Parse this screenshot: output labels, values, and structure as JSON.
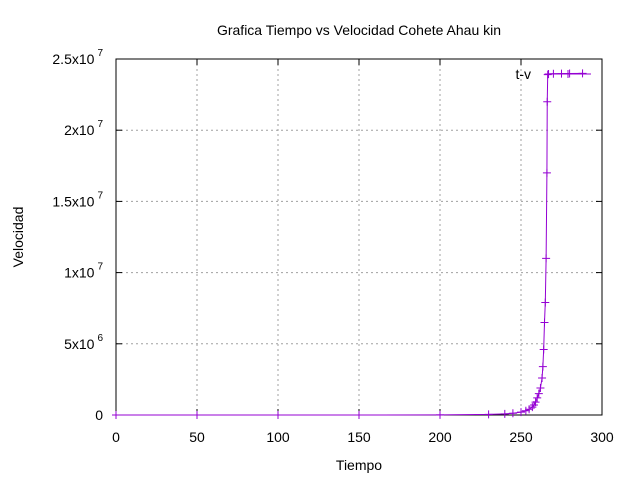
{
  "chart_data": {
    "type": "line",
    "title": "Grafica Tiempo vs Velocidad Cohete Ahau kin",
    "xlabel": "Tiempo",
    "ylabel": "Velocidad",
    "xlim": [
      0,
      300
    ],
    "ylim": [
      0,
      25000000
    ],
    "x_ticks": [
      0,
      50,
      100,
      150,
      200,
      250,
      300
    ],
    "x_tick_labels": [
      "0",
      "50",
      "100",
      "150",
      "200",
      "250",
      "300"
    ],
    "y_ticks": [
      0,
      5000000,
      10000000,
      15000000,
      20000000,
      25000000
    ],
    "y_tick_labels": [
      {
        "base": "0",
        "exp": ""
      },
      {
        "base": "5x10",
        "exp": "6"
      },
      {
        "base": "1x10",
        "exp": "7"
      },
      {
        "base": "1.5x10",
        "exp": "7"
      },
      {
        "base": "2x10",
        "exp": "7"
      },
      {
        "base": "2.5x10",
        "exp": "7"
      }
    ],
    "grid": true,
    "legend_position": "top-right",
    "series": [
      {
        "name": "t-v",
        "color": "#9400d3",
        "marker": "plus",
        "x": [
          0,
          50,
          100,
          150,
          200,
          230,
          240,
          245,
          250,
          253,
          255,
          257,
          258,
          259,
          260,
          261,
          262,
          263,
          263.5,
          264,
          264.5,
          265,
          265.5,
          266,
          266.2,
          266.5,
          267,
          270,
          275,
          280,
          288
        ],
        "y": [
          0,
          0,
          0,
          0,
          10000,
          40000,
          80000,
          120000,
          200000,
          300000,
          400000,
          550000,
          700000,
          900000,
          1200000,
          1500000,
          1900000,
          2600000,
          3400000,
          4600000,
          6500000,
          7900000,
          11000000,
          17000000,
          22000000,
          23900000,
          23950000,
          23960000,
          23970000,
          23980000,
          23990000
        ]
      }
    ]
  }
}
